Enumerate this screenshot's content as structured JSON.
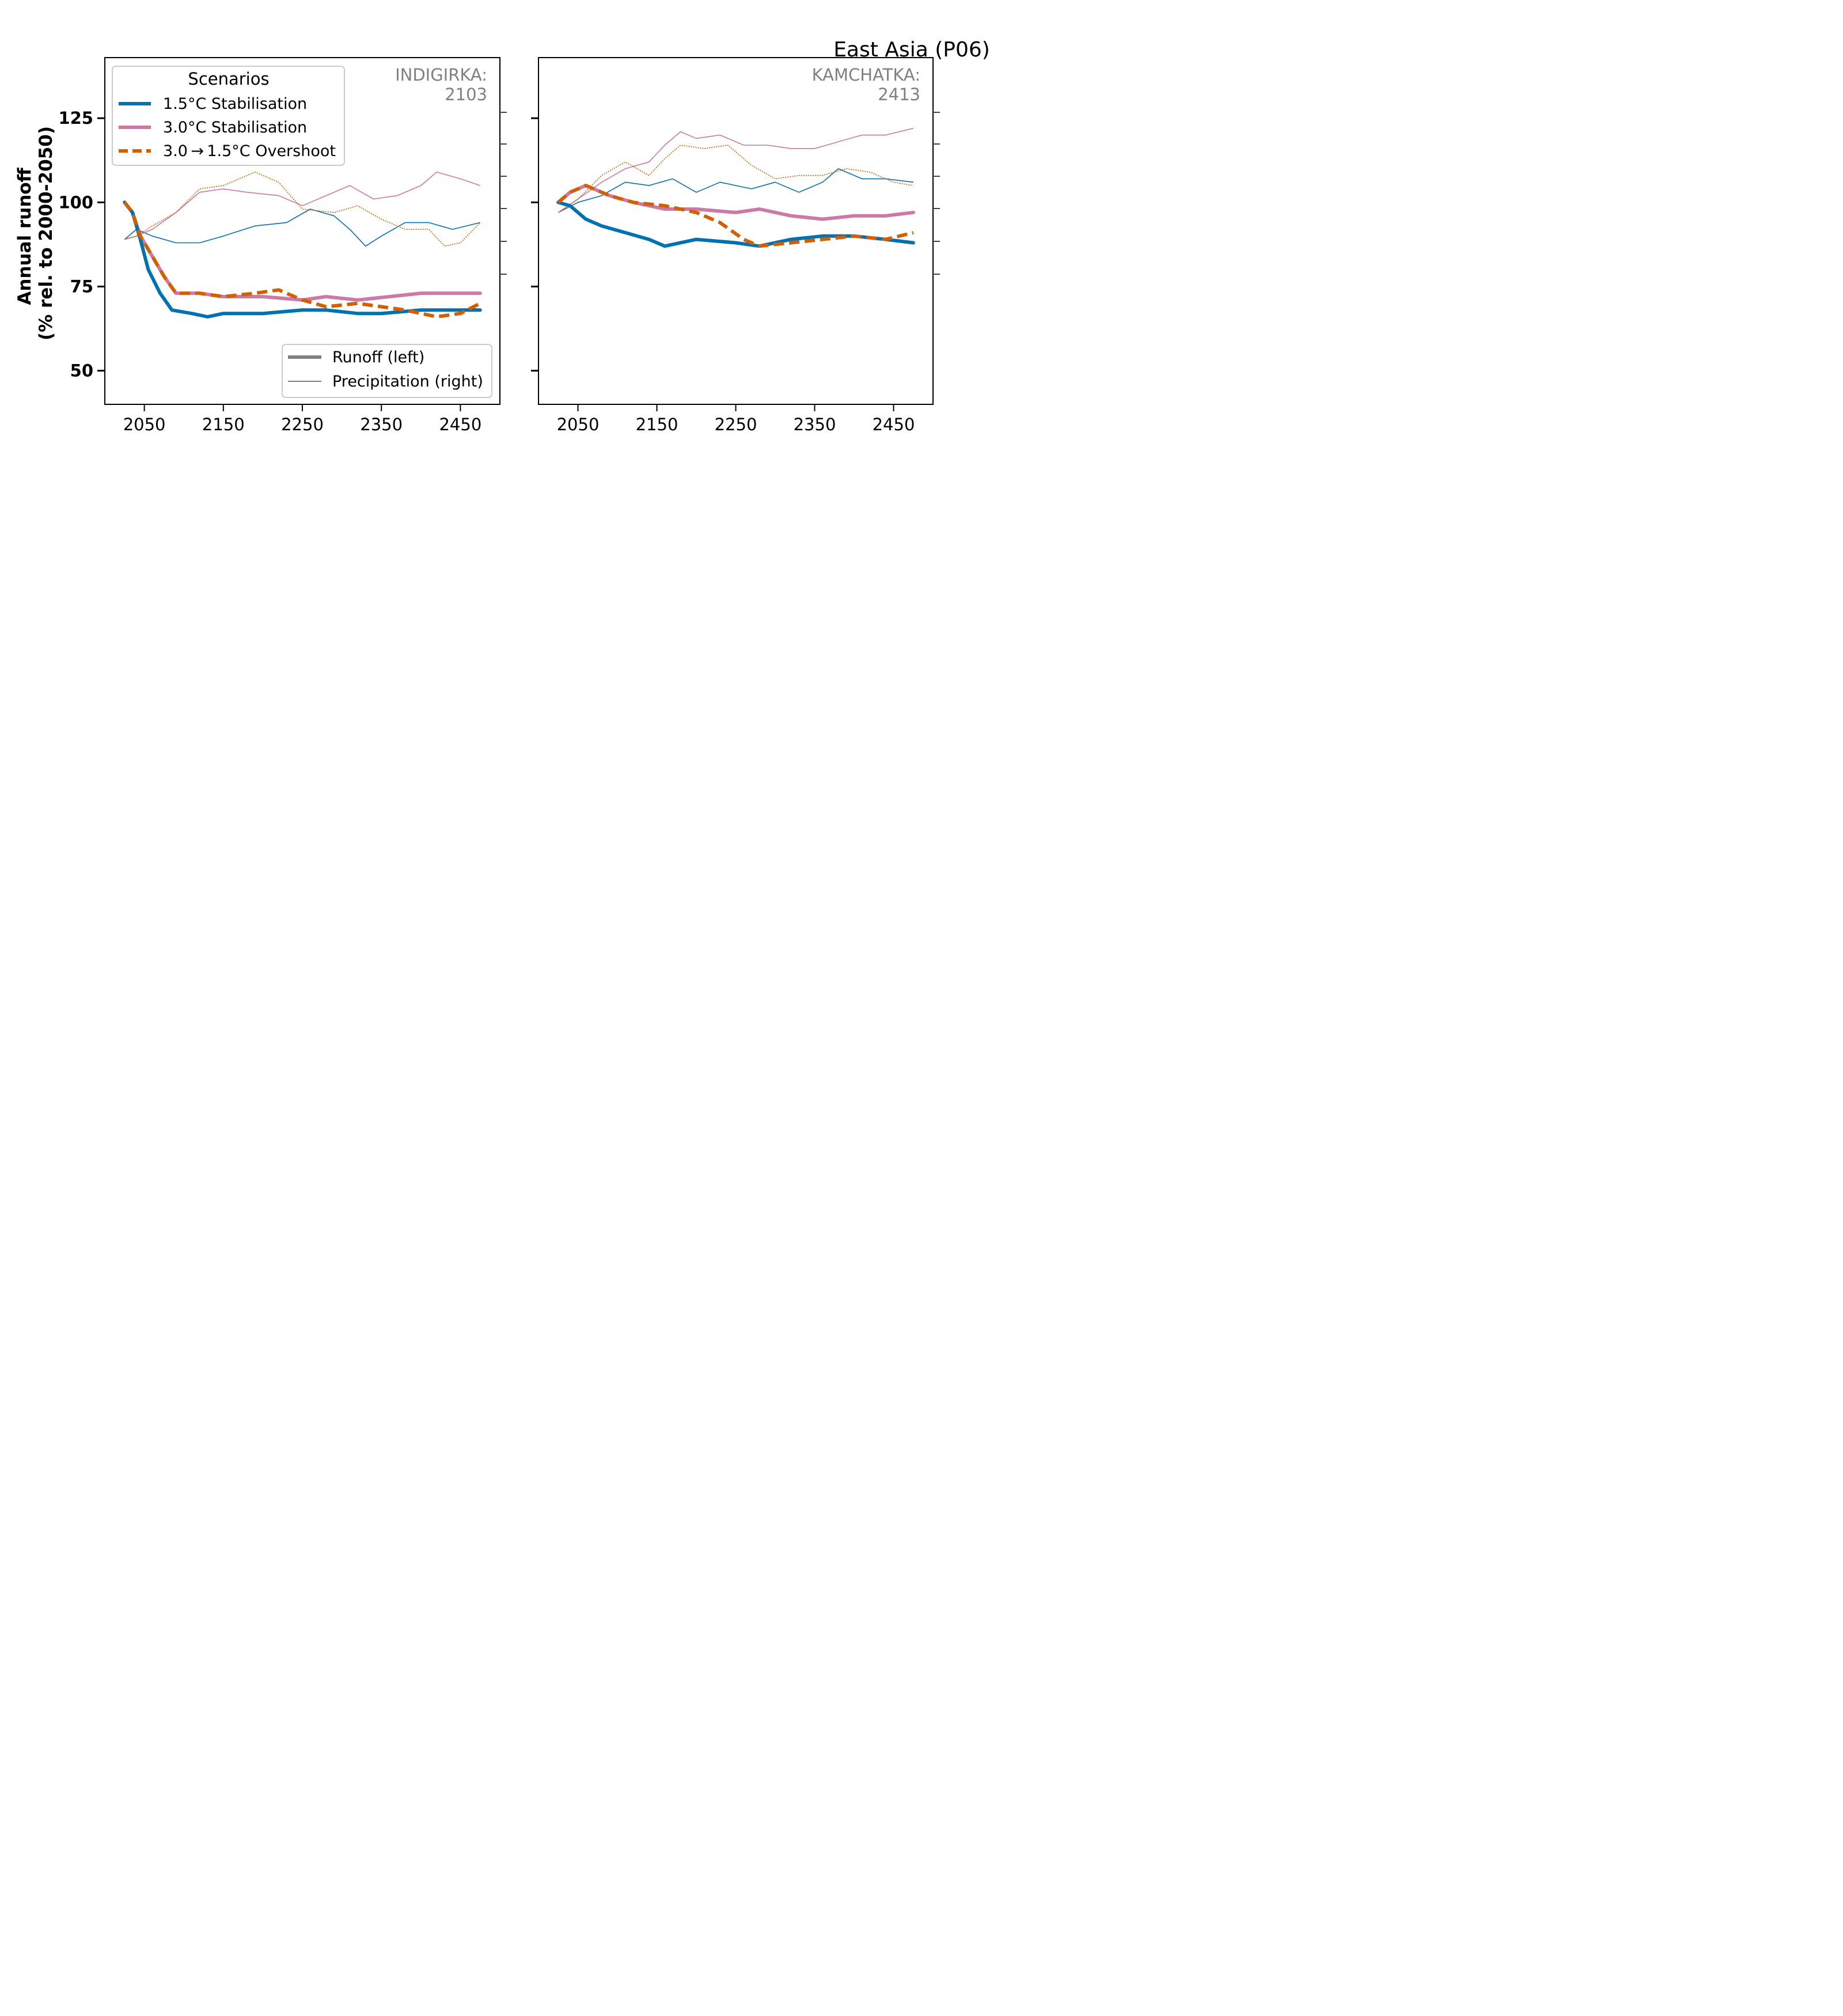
{
  "figure_title": "East Asia (P06)",
  "colors": {
    "s15": "#0072b2",
    "s30": "#cc79a7",
    "os": "#d55e00",
    "axis": "#000000",
    "label_gray": "#808080",
    "legend_gray": "#808080"
  },
  "legend": {
    "title": "Scenarios",
    "items": [
      {
        "key": "s15",
        "label": "1.5°C Stabilisation",
        "dash": false
      },
      {
        "key": "s30",
        "label": "3.0°C Stabilisation",
        "dash": false
      },
      {
        "key": "os",
        "label": "3.0 → 1.5°C Overshoot",
        "dash": true
      }
    ],
    "variable_items": [
      {
        "label": "Runoff (left)",
        "weight": "thick"
      },
      {
        "label": "Precipitation (right)",
        "weight": "thin"
      }
    ]
  },
  "chart_data": [
    {
      "type": "line",
      "panel_label": "INDIGIRKA:",
      "panel_count": "2103",
      "ylabel": "Annual runoff\n(% rel. to 2000-2050)",
      "xlim": [
        2000,
        2500
      ],
      "ylim": [
        40,
        143
      ],
      "xticks": [
        2050,
        2150,
        2250,
        2350,
        2450
      ],
      "yticks": [
        50,
        75,
        100,
        125
      ],
      "runoff": {
        "s15": [
          [
            2025,
            100
          ],
          [
            2035,
            97
          ],
          [
            2045,
            89
          ],
          [
            2055,
            80
          ],
          [
            2070,
            73
          ],
          [
            2085,
            68
          ],
          [
            2110,
            67
          ],
          [
            2130,
            66
          ],
          [
            2150,
            67
          ],
          [
            2200,
            67
          ],
          [
            2250,
            68
          ],
          [
            2280,
            68
          ],
          [
            2320,
            67
          ],
          [
            2350,
            67
          ],
          [
            2400,
            68
          ],
          [
            2440,
            68
          ],
          [
            2475,
            68
          ]
        ],
        "s30": [
          [
            2025,
            100
          ],
          [
            2035,
            97
          ],
          [
            2045,
            90
          ],
          [
            2060,
            84
          ],
          [
            2075,
            78
          ],
          [
            2090,
            73
          ],
          [
            2120,
            73
          ],
          [
            2150,
            72
          ],
          [
            2200,
            72
          ],
          [
            2250,
            71
          ],
          [
            2280,
            72
          ],
          [
            2320,
            71
          ],
          [
            2360,
            72
          ],
          [
            2400,
            73
          ],
          [
            2440,
            73
          ],
          [
            2475,
            73
          ]
        ],
        "os": [
          [
            2025,
            100
          ],
          [
            2035,
            97
          ],
          [
            2045,
            90
          ],
          [
            2060,
            84
          ],
          [
            2075,
            78
          ],
          [
            2090,
            73
          ],
          [
            2120,
            73
          ],
          [
            2150,
            72
          ],
          [
            2190,
            73
          ],
          [
            2220,
            74
          ],
          [
            2250,
            71
          ],
          [
            2280,
            69
          ],
          [
            2320,
            70
          ],
          [
            2350,
            69
          ],
          [
            2380,
            68
          ],
          [
            2420,
            66
          ],
          [
            2450,
            67
          ],
          [
            2475,
            70
          ]
        ]
      },
      "precip": {
        "s15": [
          [
            2025,
            89
          ],
          [
            2040,
            92
          ],
          [
            2060,
            90
          ],
          [
            2090,
            88
          ],
          [
            2120,
            88
          ],
          [
            2150,
            90
          ],
          [
            2190,
            93
          ],
          [
            2230,
            94
          ],
          [
            2260,
            98
          ],
          [
            2290,
            96
          ],
          [
            2310,
            92
          ],
          [
            2330,
            87
          ],
          [
            2350,
            90
          ],
          [
            2380,
            94
          ],
          [
            2410,
            94
          ],
          [
            2440,
            92
          ],
          [
            2475,
            94
          ]
        ],
        "s30": [
          [
            2025,
            89
          ],
          [
            2040,
            90
          ],
          [
            2060,
            92
          ],
          [
            2090,
            97
          ],
          [
            2120,
            103
          ],
          [
            2150,
            104
          ],
          [
            2180,
            103
          ],
          [
            2220,
            102
          ],
          [
            2250,
            99
          ],
          [
            2280,
            102
          ],
          [
            2310,
            105
          ],
          [
            2340,
            101
          ],
          [
            2370,
            102
          ],
          [
            2400,
            105
          ],
          [
            2420,
            109
          ],
          [
            2450,
            107
          ],
          [
            2475,
            105
          ]
        ],
        "os": [
          [
            2025,
            89
          ],
          [
            2040,
            90
          ],
          [
            2060,
            93
          ],
          [
            2090,
            97
          ],
          [
            2120,
            104
          ],
          [
            2150,
            105
          ],
          [
            2190,
            109
          ],
          [
            2220,
            106
          ],
          [
            2250,
            98
          ],
          [
            2290,
            97
          ],
          [
            2320,
            99
          ],
          [
            2350,
            95
          ],
          [
            2380,
            92
          ],
          [
            2410,
            92
          ],
          [
            2430,
            87
          ],
          [
            2450,
            88
          ],
          [
            2475,
            94
          ]
        ]
      }
    },
    {
      "type": "line",
      "panel_label": "KAMCHATKA:",
      "panel_count": "2413",
      "xlim": [
        2000,
        2500
      ],
      "ylim": [
        40,
        143
      ],
      "xticks": [
        2050,
        2150,
        2250,
        2350,
        2450
      ],
      "yticks": [
        50,
        75,
        100,
        125
      ],
      "runoff": {
        "s15": [
          [
            2025,
            100
          ],
          [
            2040,
            99
          ],
          [
            2060,
            95
          ],
          [
            2080,
            93
          ],
          [
            2110,
            91
          ],
          [
            2140,
            89
          ],
          [
            2160,
            87
          ],
          [
            2200,
            89
          ],
          [
            2250,
            88
          ],
          [
            2280,
            87
          ],
          [
            2320,
            89
          ],
          [
            2360,
            90
          ],
          [
            2400,
            90
          ],
          [
            2440,
            89
          ],
          [
            2475,
            88
          ]
        ],
        "s30": [
          [
            2025,
            100
          ],
          [
            2040,
            103
          ],
          [
            2060,
            105
          ],
          [
            2090,
            102
          ],
          [
            2120,
            100
          ],
          [
            2160,
            98
          ],
          [
            2200,
            98
          ],
          [
            2250,
            97
          ],
          [
            2280,
            98
          ],
          [
            2320,
            96
          ],
          [
            2360,
            95
          ],
          [
            2400,
            96
          ],
          [
            2440,
            96
          ],
          [
            2475,
            97
          ]
        ],
        "os": [
          [
            2025,
            100
          ],
          [
            2040,
            103
          ],
          [
            2060,
            105
          ],
          [
            2090,
            102
          ],
          [
            2120,
            100
          ],
          [
            2160,
            99
          ],
          [
            2200,
            97
          ],
          [
            2230,
            94
          ],
          [
            2260,
            89
          ],
          [
            2280,
            87
          ],
          [
            2320,
            88
          ],
          [
            2360,
            89
          ],
          [
            2400,
            90
          ],
          [
            2440,
            89
          ],
          [
            2475,
            91
          ]
        ]
      },
      "precip": {
        "s15": [
          [
            2025,
            97
          ],
          [
            2050,
            100
          ],
          [
            2080,
            102
          ],
          [
            2110,
            106
          ],
          [
            2140,
            105
          ],
          [
            2170,
            107
          ],
          [
            2200,
            103
          ],
          [
            2230,
            106
          ],
          [
            2270,
            104
          ],
          [
            2300,
            106
          ],
          [
            2330,
            103
          ],
          [
            2360,
            106
          ],
          [
            2380,
            110
          ],
          [
            2410,
            107
          ],
          [
            2440,
            107
          ],
          [
            2475,
            106
          ]
        ],
        "s30": [
          [
            2025,
            97
          ],
          [
            2050,
            101
          ],
          [
            2080,
            106
          ],
          [
            2110,
            110
          ],
          [
            2140,
            112
          ],
          [
            2160,
            117
          ],
          [
            2180,
            121
          ],
          [
            2200,
            119
          ],
          [
            2230,
            120
          ],
          [
            2260,
            117
          ],
          [
            2290,
            117
          ],
          [
            2320,
            116
          ],
          [
            2350,
            116
          ],
          [
            2380,
            118
          ],
          [
            2410,
            120
          ],
          [
            2440,
            120
          ],
          [
            2475,
            122
          ]
        ],
        "os": [
          [
            2025,
            97
          ],
          [
            2050,
            101
          ],
          [
            2080,
            108
          ],
          [
            2110,
            112
          ],
          [
            2140,
            108
          ],
          [
            2160,
            113
          ],
          [
            2180,
            117
          ],
          [
            2210,
            116
          ],
          [
            2240,
            117
          ],
          [
            2270,
            111
          ],
          [
            2300,
            107
          ],
          [
            2330,
            108
          ],
          [
            2360,
            108
          ],
          [
            2390,
            110
          ],
          [
            2420,
            109
          ],
          [
            2450,
            106
          ],
          [
            2475,
            105
          ]
        ]
      }
    }
  ]
}
